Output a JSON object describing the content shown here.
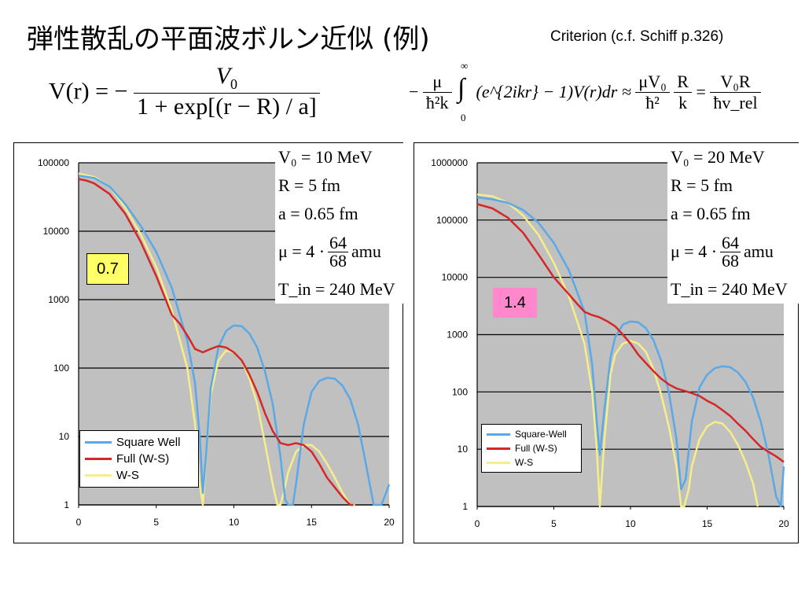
{
  "title": "弾性散乱の平面波ボルン近似 (例)",
  "criterion": "Criterion (c.f. Schiff p.326)",
  "formula_left": {
    "lhs": "V(r) = −",
    "numerator": "V",
    "numerator_sub": "0",
    "denominator": "1 + exp[(r − R) / a]"
  },
  "formula_right": {
    "minus": "−",
    "frac1_num": "μ",
    "frac1_den": "ħ²k",
    "integral_upper": "∞",
    "integral_lower": "0",
    "integrand": "(e^{2ikr} − 1)V(r)dr ≈",
    "frac2_num": "μV₀",
    "frac2_den": "ħ²",
    "frac3_num": "R",
    "frac3_den": "k",
    "equals": "=",
    "frac4_num": "V₀R",
    "frac4_den": "ħv_rel"
  },
  "charts": [
    {
      "badge": {
        "text": "0.7",
        "color": "#ffff66"
      },
      "params": [
        "V₀ = 10 MeV",
        "R = 5 fm",
        "a = 0.65 fm",
        "μ = 4 ·",
        "T_in = 240 MeV"
      ],
      "mu_frac": {
        "num": "64",
        "den": "68",
        "unit": "amu"
      },
      "legend": [
        "Square Well",
        "Full (W-S)",
        "W-S"
      ]
    },
    {
      "badge": {
        "text": "1.4",
        "color": "#ff88cc"
      },
      "params": [
        "V₀ = 20 MeV",
        "R = 5 fm",
        "a = 0.65 fm",
        "μ = 4 ·",
        "T_in = 240 MeV"
      ],
      "mu_frac": {
        "num": "64",
        "den": "68",
        "unit": "amu"
      },
      "legend": [
        "Square-Well",
        "Full (W-S)",
        "W-S"
      ]
    }
  ],
  "chart_data": [
    {
      "type": "line",
      "y_scale": "log",
      "xlim": [
        0,
        20
      ],
      "ylim": [
        1,
        100000
      ],
      "x_ticks": [
        "0",
        "5",
        "10",
        "15",
        "20"
      ],
      "y_ticks": [
        "1",
        "10",
        "100",
        "1000",
        "10000",
        "100000"
      ],
      "grid": "horizontal",
      "colors": {
        "Square Well": "#5aa9e6",
        "Full (W-S)": "#d62728",
        "W-S": "#f5ee8a"
      },
      "series": [
        {
          "name": "Square Well",
          "x": [
            0,
            1,
            2,
            3,
            4,
            5,
            6,
            7,
            7.5,
            7.8,
            8.0,
            8.2,
            8.5,
            9,
            9.5,
            10,
            10.5,
            11,
            11.5,
            12,
            12.5,
            13,
            13.3,
            13.5,
            13.8,
            14,
            14.5,
            15,
            15.5,
            16,
            16.5,
            17,
            17.5,
            18,
            18.5,
            19,
            19.5,
            19.8,
            20
          ],
          "y": [
            65000,
            60000,
            45000,
            25000,
            12000,
            5000,
            1500,
            250,
            60,
            10,
            1.5,
            5,
            50,
            200,
            350,
            420,
            410,
            320,
            200,
            90,
            30,
            5,
            1.2,
            1,
            1,
            2,
            15,
            45,
            65,
            72,
            70,
            55,
            35,
            15,
            4,
            1,
            1,
            1.5,
            2
          ]
        },
        {
          "name": "Full (W-S)",
          "x": [
            0,
            0.5,
            1,
            2,
            3,
            4,
            5,
            6,
            6.5,
            7,
            7.5,
            8,
            8.5,
            9,
            9.5,
            10,
            10.5,
            11,
            11.5,
            12,
            12.5,
            13,
            13.5,
            14,
            14.5,
            15,
            15.5,
            16,
            16.5,
            17,
            17.5,
            17.7
          ],
          "y": [
            58000,
            55000,
            50000,
            35000,
            18000,
            7000,
            2200,
            600,
            450,
            300,
            190,
            170,
            190,
            210,
            200,
            170,
            130,
            80,
            45,
            22,
            12,
            8,
            7.5,
            8,
            7.5,
            6,
            4,
            2.5,
            1.8,
            1.3,
            1,
            1
          ]
        },
        {
          "name": "W-S",
          "x": [
            0,
            1,
            2,
            3,
            4,
            5,
            6,
            7,
            7.5,
            7.8,
            8.0,
            8.2,
            8.5,
            9,
            9.5,
            10,
            10.5,
            11,
            11.5,
            12,
            12.5,
            12.8,
            13,
            13.2,
            13.5,
            14,
            14.5,
            15,
            15.5,
            16,
            16.5,
            17,
            17.5,
            17.8
          ],
          "y": [
            70000,
            62000,
            45000,
            22000,
            9000,
            3000,
            700,
            100,
            15,
            2,
            1,
            5,
            40,
            130,
            180,
            170,
            130,
            70,
            30,
            8,
            2,
            1,
            1,
            1.5,
            3,
            6,
            7.5,
            7.5,
            6,
            4,
            2.5,
            1.5,
            1,
            1
          ]
        }
      ]
    },
    {
      "type": "line",
      "y_scale": "log",
      "xlim": [
        0,
        20
      ],
      "ylim": [
        1,
        1000000
      ],
      "x_ticks": [
        "0",
        "5",
        "10",
        "15",
        "20"
      ],
      "y_ticks": [
        "1",
        "10",
        "100",
        "1000",
        "10000",
        "100000",
        "1000000"
      ],
      "grid": "horizontal",
      "colors": {
        "Square-Well": "#5aa9e6",
        "Full (W-S)": "#d62728",
        "W-S": "#f5ee8a"
      },
      "series": [
        {
          "name": "Square-Well",
          "x": [
            0,
            1,
            2,
            3,
            4,
            5,
            6,
            7,
            7.5,
            7.8,
            8.0,
            8.3,
            8.7,
            9,
            9.5,
            10,
            10.5,
            11,
            11.5,
            12,
            12.5,
            13,
            13.3,
            13.6,
            14,
            14.5,
            15,
            15.5,
            16,
            16.5,
            17,
            17.5,
            18,
            18.5,
            19,
            19.5,
            19.8,
            20
          ],
          "y": [
            250000,
            230000,
            200000,
            150000,
            90000,
            40000,
            13000,
            2500,
            300,
            30,
            8,
            50,
            400,
            900,
            1500,
            1700,
            1650,
            1300,
            800,
            350,
            100,
            15,
            2,
            3,
            30,
            120,
            200,
            260,
            280,
            270,
            220,
            150,
            80,
            30,
            8,
            1.5,
            1,
            5
          ]
        },
        {
          "name": "Full (W-S)",
          "x": [
            0,
            1,
            2,
            3,
            4,
            5,
            6,
            6.5,
            7,
            7.5,
            8,
            8.5,
            9,
            9.5,
            10,
            10.5,
            11,
            11.5,
            12,
            12.5,
            13,
            13.5,
            14,
            14.5,
            15,
            15.5,
            16,
            16.5,
            17,
            17.5,
            18,
            18.5,
            19,
            19.5,
            20
          ],
          "y": [
            190000,
            160000,
            110000,
            60000,
            25000,
            10000,
            5000,
            3500,
            2500,
            2200,
            2000,
            1700,
            1400,
            1000,
            700,
            450,
            320,
            230,
            170,
            135,
            115,
            105,
            95,
            85,
            70,
            60,
            48,
            38,
            28,
            21,
            15,
            11,
            9,
            7.5,
            6
          ]
        },
        {
          "name": "W-S",
          "x": [
            0,
            1,
            2,
            3,
            4,
            5,
            6,
            7,
            7.5,
            7.8,
            8.0,
            8.3,
            8.7,
            9,
            9.5,
            10,
            10.5,
            11,
            11.5,
            12,
            12.5,
            13,
            13.3,
            13.5,
            13.8,
            14,
            14.5,
            15,
            15.5,
            16,
            16.5,
            17,
            17.5,
            18,
            18.3
          ],
          "y": [
            280000,
            260000,
            200000,
            120000,
            55000,
            18000,
            4500,
            700,
            100,
            10,
            1,
            15,
            200,
            450,
            700,
            780,
            700,
            500,
            250,
            90,
            25,
            5,
            1,
            1,
            2,
            5,
            15,
            25,
            30,
            28,
            20,
            12,
            6,
            2.5,
            1
          ]
        }
      ]
    }
  ]
}
